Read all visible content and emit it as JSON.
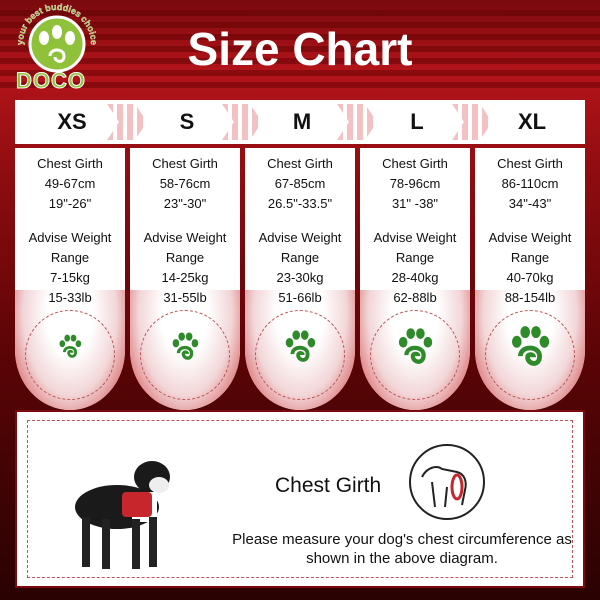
{
  "brand": {
    "name": "DOCO",
    "tagline": "your best buddies choice"
  },
  "title": "Size Chart",
  "sizes": [
    {
      "label": "XS",
      "girth_label": "Chest Girth",
      "cm": "49-67cm",
      "inch": "19\"-26\"",
      "weight_label": "Advise Weight",
      "range_label": "Range",
      "kg": "7-15kg",
      "lb": "15-33lb"
    },
    {
      "label": "S",
      "girth_label": "Chest Girth",
      "cm": "58-76cm",
      "inch": "23\"-30\"",
      "weight_label": "Advise Weight",
      "range_label": "Range",
      "kg": "14-25kg",
      "lb": "31-55lb"
    },
    {
      "label": "M",
      "girth_label": "Chest Girth",
      "cm": "67-85cm",
      "inch": "26.5\"-33.5\"",
      "weight_label": "Advise Weight",
      "range_label": "Range",
      "kg": "23-30kg",
      "lb": "51-66lb"
    },
    {
      "label": "L",
      "girth_label": "Chest Girth",
      "cm": "78-96cm",
      "inch": "31\" -38\"",
      "weight_label": "Advise Weight",
      "range_label": "Range",
      "kg": "28-40kg",
      "lb": "62-88lb"
    },
    {
      "label": "XL",
      "girth_label": "Chest Girth",
      "cm": "86-110cm",
      "inch": "34\"-43\"",
      "weight_label": "Advise Weight",
      "range_label": "Range",
      "kg": "40-70kg",
      "lb": "88-154lb"
    }
  ],
  "measure": {
    "title": "Chest Girth",
    "description": "Please measure your dog's chest circumference as shown in the above diagram."
  },
  "colors": {
    "background": "#8c0c10",
    "paw": "#2f8a2a",
    "logo": "#8fc23a"
  }
}
